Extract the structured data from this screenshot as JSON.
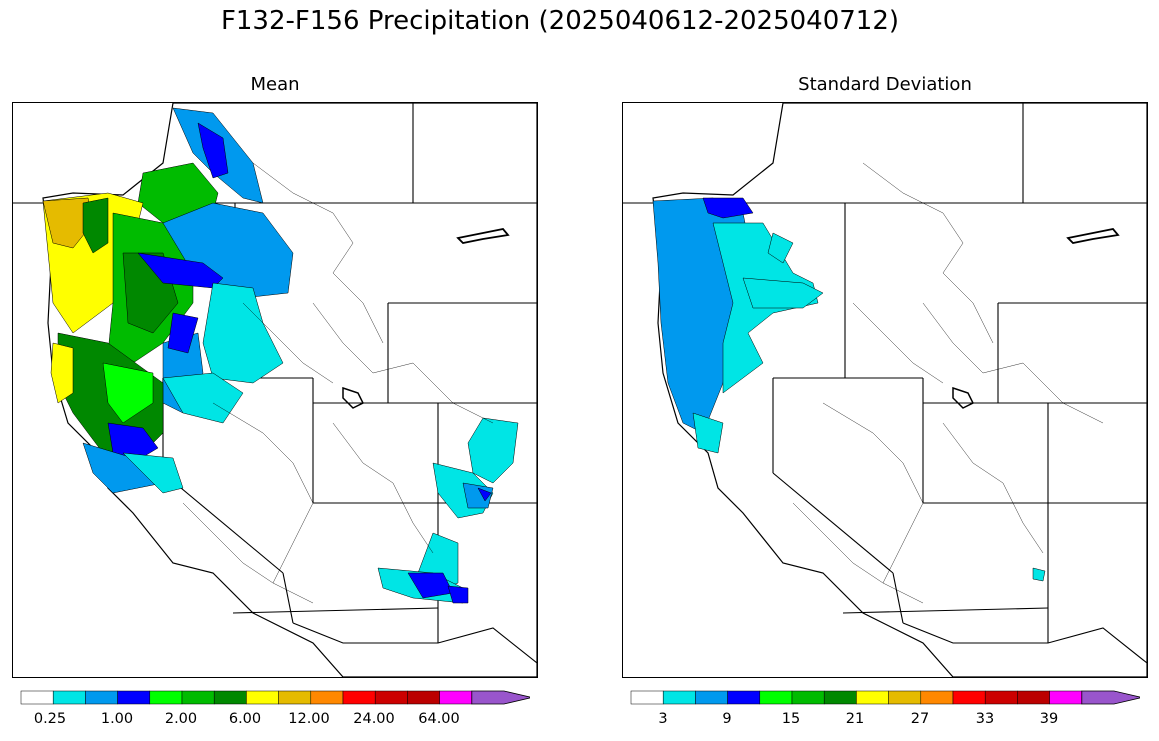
{
  "title": "F132-F156 Precipitation (2025040612-2025040712)",
  "panels": [
    {
      "subtitle": "Mean",
      "colorbar": {
        "colors": [
          "#ffffff",
          "#00e5e5",
          "#0099ee",
          "#0000ff",
          "#00ff00",
          "#00bb00",
          "#008800",
          "#ffff00",
          "#e5bb00",
          "#ff8800",
          "#ff0000",
          "#cc0000",
          "#bb0000",
          "#ff00ff",
          "#9955cc"
        ],
        "tick_labels": [
          "0.25",
          "1.00",
          "2.00",
          "6.00",
          "12.00",
          "24.00",
          "64.00"
        ]
      }
    },
    {
      "subtitle": "Standard Deviation",
      "colorbar": {
        "colors": [
          "#ffffff",
          "#00e5e5",
          "#0099ee",
          "#0000ff",
          "#00ff00",
          "#00bb00",
          "#008800",
          "#ffff00",
          "#e5bb00",
          "#ff8800",
          "#ff0000",
          "#cc0000",
          "#bb0000",
          "#ff00ff",
          "#9955cc"
        ],
        "tick_labels": [
          "3",
          "9",
          "15",
          "21",
          "27",
          "33",
          "39"
        ]
      }
    }
  ]
}
